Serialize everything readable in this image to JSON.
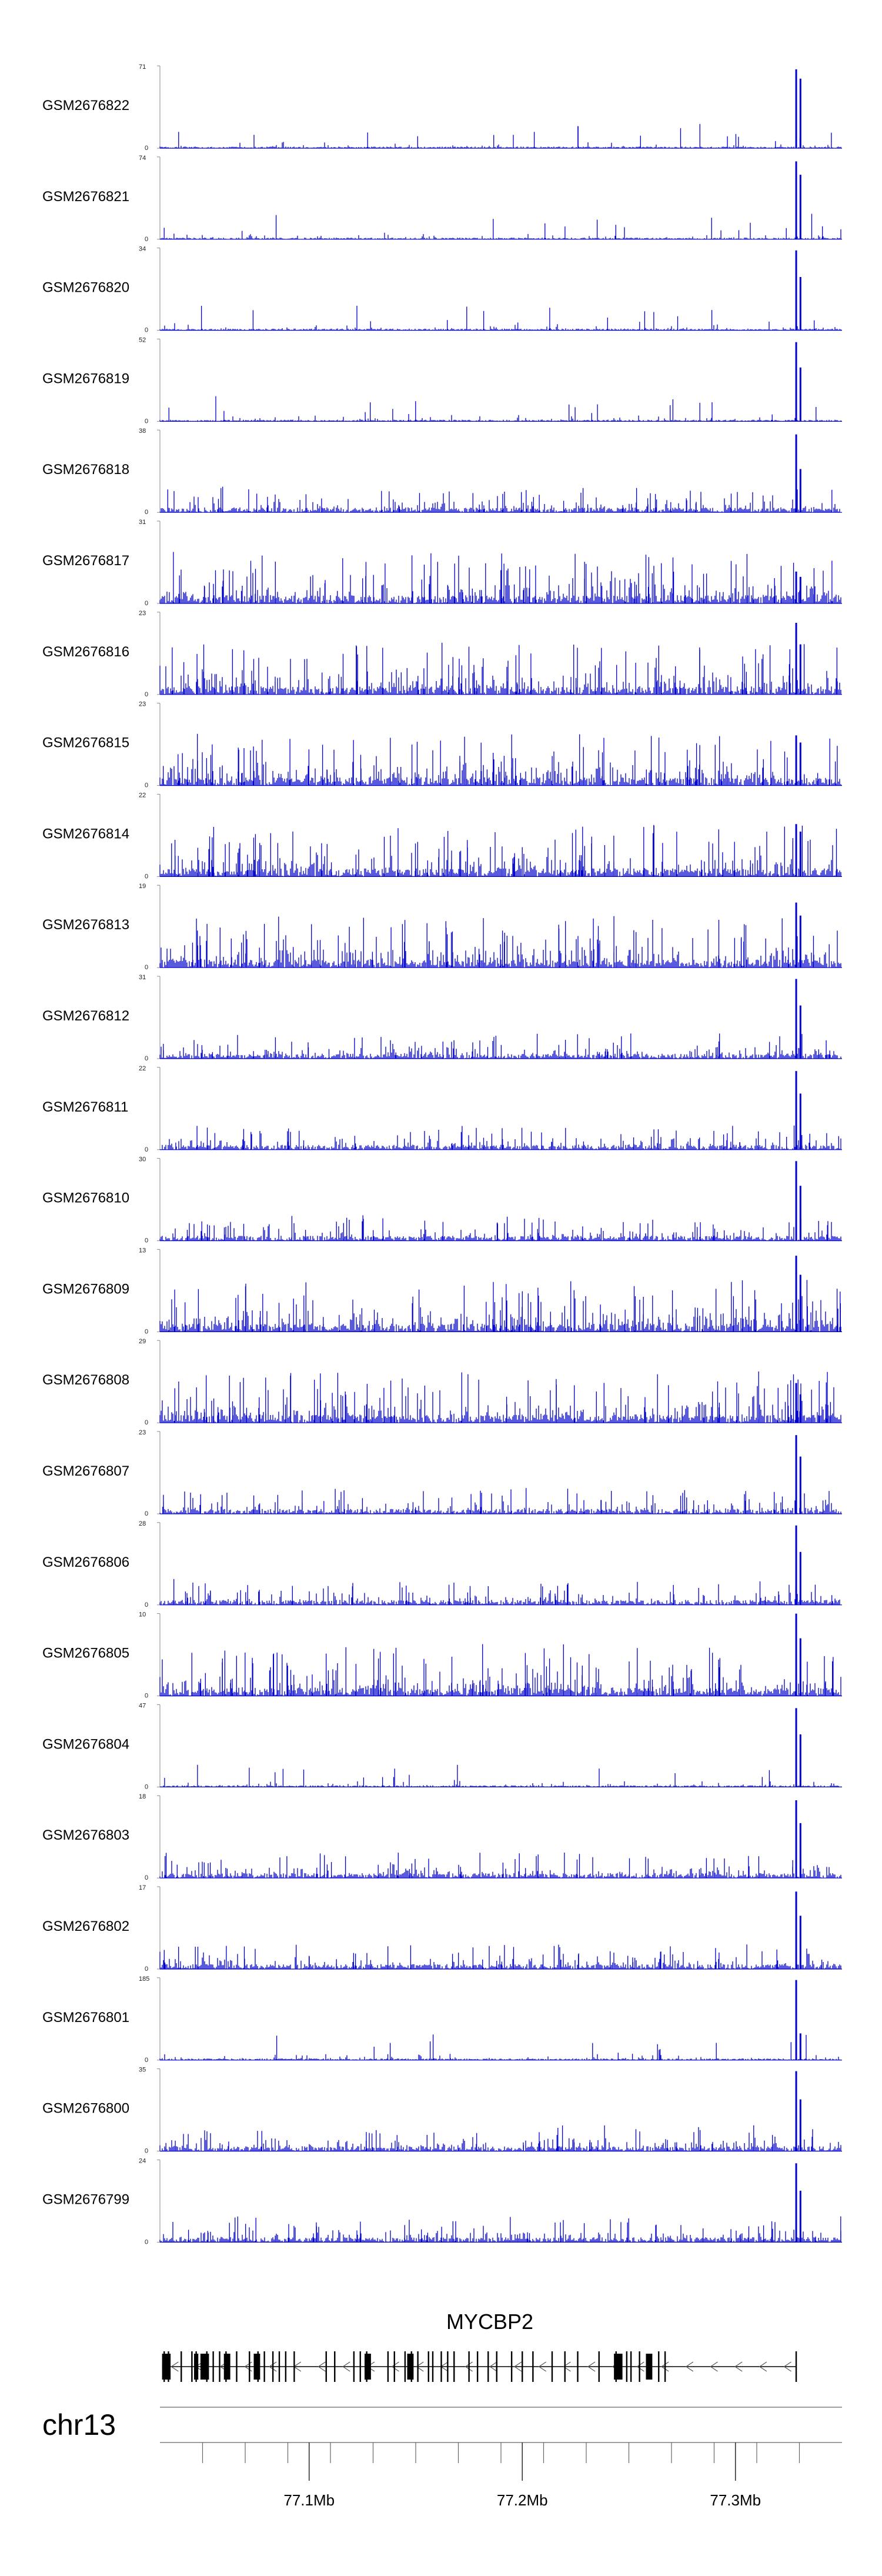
{
  "chart_data": {
    "type": "area",
    "region": "chr13",
    "xlim": [
      77.03,
      77.35
    ],
    "tracks": [
      {
        "sample": "GSM2676822",
        "ymax": "71",
        "ymin": "0",
        "profile": "peaky",
        "peak": [
          68,
          60
        ]
      },
      {
        "sample": "GSM2676821",
        "ymax": "74",
        "ymin": "0",
        "profile": "peaky",
        "peak": [
          70,
          58
        ]
      },
      {
        "sample": "GSM2676820",
        "ymax": "34",
        "ymin": "0",
        "profile": "peaky",
        "peak": [
          33,
          22
        ]
      },
      {
        "sample": "GSM2676819",
        "ymax": "52",
        "ymin": "0",
        "profile": "peaky",
        "peak": [
          50,
          34
        ]
      },
      {
        "sample": "GSM2676818",
        "ymax": "38",
        "ymin": "0",
        "profile": "medium",
        "peak": [
          36,
          20
        ]
      },
      {
        "sample": "GSM2676817",
        "ymax": "31",
        "ymin": "0",
        "profile": "noisy",
        "peak": [
          12,
          10
        ]
      },
      {
        "sample": "GSM2676816",
        "ymax": "23",
        "ymin": "0",
        "profile": "noisy",
        "peak": [
          20,
          14
        ]
      },
      {
        "sample": "GSM2676815",
        "ymax": "23",
        "ymin": "0",
        "profile": "noisy",
        "peak": [
          14,
          12
        ]
      },
      {
        "sample": "GSM2676814",
        "ymax": "22",
        "ymin": "0",
        "profile": "noisy",
        "peak": [
          14,
          12
        ]
      },
      {
        "sample": "GSM2676813",
        "ymax": "19",
        "ymin": "0",
        "profile": "noisy",
        "peak": [
          15,
          12
        ]
      },
      {
        "sample": "GSM2676812",
        "ymax": "31",
        "ymin": "0",
        "profile": "medium",
        "peak": [
          30,
          20
        ]
      },
      {
        "sample": "GSM2676811",
        "ymax": "22",
        "ymin": "0",
        "profile": "medium",
        "peak": [
          21,
          15
        ]
      },
      {
        "sample": "GSM2676810",
        "ymax": "30",
        "ymin": "0",
        "profile": "medium",
        "peak": [
          29,
          20
        ]
      },
      {
        "sample": "GSM2676809",
        "ymax": "13",
        "ymin": "0",
        "profile": "noisy",
        "peak": [
          12,
          9
        ]
      },
      {
        "sample": "GSM2676808",
        "ymax": "29",
        "ymin": "0",
        "profile": "noisy",
        "peak": [
          14,
          10
        ]
      },
      {
        "sample": "GSM2676807",
        "ymax": "23",
        "ymin": "0",
        "profile": "medium",
        "peak": [
          22,
          16
        ]
      },
      {
        "sample": "GSM2676806",
        "ymax": "28",
        "ymin": "0",
        "profile": "medium",
        "peak": [
          27,
          18
        ]
      },
      {
        "sample": "GSM2676805",
        "ymax": "10",
        "ymin": "0",
        "profile": "noisy",
        "peak": [
          10,
          7
        ]
      },
      {
        "sample": "GSM2676804",
        "ymax": "47",
        "ymin": "0",
        "profile": "peaky",
        "peak": [
          45,
          30
        ]
      },
      {
        "sample": "GSM2676803",
        "ymax": "18",
        "ymin": "0",
        "profile": "medium",
        "peak": [
          17,
          12
        ]
      },
      {
        "sample": "GSM2676802",
        "ymax": "17",
        "ymin": "0",
        "profile": "medium",
        "peak": [
          16,
          11
        ]
      },
      {
        "sample": "GSM2676801",
        "ymax": "185",
        "ymin": "0",
        "profile": "peaky",
        "peak": [
          180,
          60
        ]
      },
      {
        "sample": "GSM2676800",
        "ymax": "35",
        "ymin": "0",
        "profile": "medium",
        "peak": [
          34,
          22
        ]
      },
      {
        "sample": "GSM2676799",
        "ymax": "24",
        "ymin": "0",
        "profile": "medium",
        "peak": [
          23,
          15
        ]
      }
    ],
    "peak_positions": [
      77.3285,
      77.3305
    ],
    "gene": {
      "name": "MYCBP2",
      "start": 77.031,
      "end": 77.3285,
      "strand": "-",
      "exons": [
        77.032,
        77.034,
        77.04,
        77.045,
        77.047,
        77.052,
        77.055,
        77.058,
        77.061,
        77.066,
        77.072,
        77.076,
        77.079,
        77.083,
        77.086,
        77.089,
        77.093,
        77.108,
        77.112,
        77.121,
        77.124,
        77.127,
        77.137,
        77.14,
        77.145,
        77.148,
        77.151,
        77.156,
        77.158,
        77.162,
        77.165,
        77.168,
        77.175,
        77.179,
        77.184,
        77.188,
        77.195,
        77.2,
        77.205,
        77.214,
        77.22,
        77.226,
        77.236,
        77.244,
        77.249,
        77.251,
        77.255,
        77.264,
        77.267,
        77.3285
      ],
      "wide_exons": [
        [
          77.031,
          77.035
        ],
        [
          77.046,
          77.048
        ],
        [
          77.049,
          77.053
        ],
        [
          77.06,
          77.063
        ],
        [
          77.074,
          77.077
        ],
        [
          77.126,
          77.129
        ],
        [
          77.146,
          77.149
        ],
        [
          77.243,
          77.247
        ],
        [
          77.258,
          77.261
        ]
      ]
    },
    "axis": {
      "ticks": [
        77.05,
        77.07,
        77.09,
        77.11,
        77.13,
        77.15,
        77.17,
        77.19,
        77.21,
        77.23,
        77.25,
        77.27,
        77.29,
        77.31,
        77.33
      ],
      "major_ticks": [
        77.1,
        77.2,
        77.3
      ],
      "major_labels": [
        "77.1Mb",
        "77.2Mb",
        "77.3Mb"
      ]
    },
    "colors": {
      "signal": "#0000cc",
      "baseline": "#0000cc",
      "gene": "#000000",
      "axis": "#666666"
    }
  }
}
